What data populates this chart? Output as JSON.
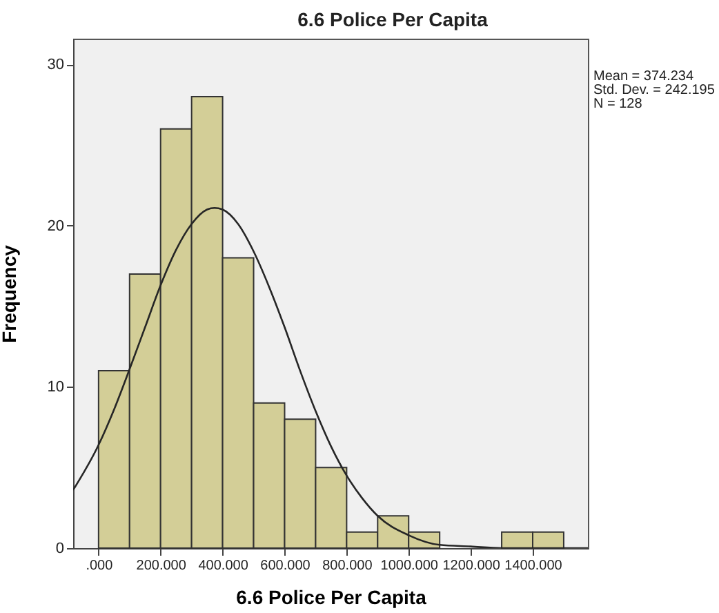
{
  "chart_data": {
    "type": "histogram",
    "title": "6.6 Police Per Capita",
    "xlabel": "6.6 Police Per Capita",
    "ylabel": "Frequency",
    "bins": [
      0,
      100,
      200,
      300,
      400,
      500,
      600,
      700,
      800,
      900,
      1000,
      1100,
      1200,
      1300,
      1400,
      1500
    ],
    "values": [
      11,
      17,
      26,
      28,
      18,
      9,
      8,
      5,
      1,
      2,
      1,
      0,
      0,
      1,
      1
    ],
    "color": "#d3ce97",
    "series": [
      {
        "type": "line",
        "color": "#262626",
        "x": [
          -82,
          0,
          50,
          100,
          150,
          200,
          250,
          300,
          350,
          374,
          400,
          450,
          500,
          550,
          600,
          650,
          700,
          750,
          800,
          850,
          900,
          1000,
          1100,
          1200,
          1300,
          1400,
          1578
        ],
        "values": [
          3.6,
          6.4,
          8.6,
          11.1,
          13.7,
          16.3,
          18.5,
          20.1,
          21.0,
          21.1,
          21.0,
          20.1,
          18.4,
          16.2,
          13.7,
          11.0,
          8.5,
          6.3,
          4.5,
          3.1,
          2.0,
          0.8,
          0.2,
          0.1,
          0.0,
          0.0,
          0.0
        ]
      }
    ],
    "xlim": [
      -82,
      1578
    ],
    "ylim": [
      0,
      31.6
    ],
    "xticks": [
      {
        "value": 0,
        "label": ".000"
      },
      {
        "value": 200,
        "label": "200.000"
      },
      {
        "value": 400,
        "label": "400.000"
      },
      {
        "value": 600,
        "label": "600.000"
      },
      {
        "value": 800,
        "label": "800.000"
      },
      {
        "value": 1000,
        "label": "1000.000"
      },
      {
        "value": 1200,
        "label": "1200.000"
      },
      {
        "value": 1400,
        "label": "1400.000"
      }
    ],
    "yticks": [
      0,
      10,
      20,
      30
    ],
    "grid": false,
    "annotations": [
      "Mean = 374.234",
      "Std. Dev. = 242.195",
      "N = 128"
    ]
  }
}
